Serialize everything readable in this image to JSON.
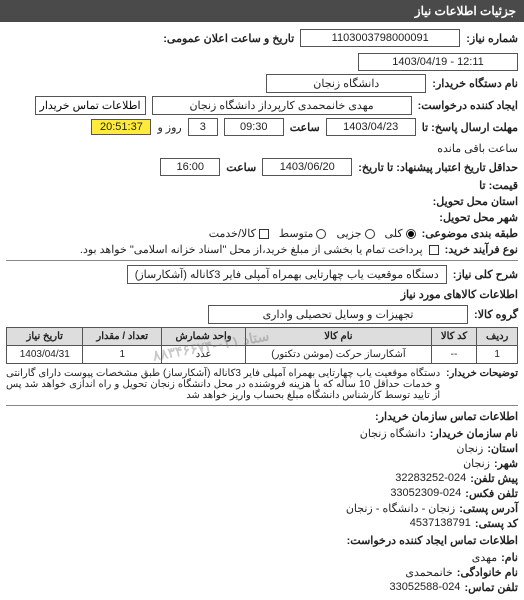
{
  "header": "جزئیات اطلاعات نیاز",
  "fields": {
    "request_number_label": "شماره نیاز:",
    "request_number": "1103003798000091",
    "announce_datetime_label": "تاریخ و ساعت اعلان عمومی:",
    "announce_datetime": "12:11 - 1403/04/19",
    "dept_name_label": "نام دستگاه خریدار:",
    "dept_name": "دانشگاه زنجان",
    "creator_label": "ایجاد کننده درخواست:",
    "creator": "مهدی خانمحمدی کارپرداز دانشگاه زنجان",
    "contact_btn": "اطلاعات تماس خریدار",
    "deadline_label": "مهلت ارسال پاسخ: تا",
    "deadline_date": "1403/04/23",
    "time_label": "ساعت",
    "deadline_time": "09:30",
    "remaining_days": "3",
    "remaining_days_label": "روز و",
    "remaining_time": "20:51:37",
    "remaining_label": "ساعت باقی مانده",
    "validity_label": "حداقل تاریخ اعتبار پیشنهاد: تا تاریخ:",
    "validity_date": "1403/06/20",
    "validity_time": "16:00",
    "price_null_label": "قیمت: تا",
    "delivery_province_label": "استان محل تحویل:",
    "delivery_city_label": "شهر محل تحویل:",
    "budget_label": "طبقه بندی موضوعی:",
    "radio_all": "کلی",
    "radio_partial": "جزیی",
    "radio_mid": "متوسط",
    "radio_item": "کالا/خدمت",
    "process_label": "نوع فرآیند خرید:",
    "process_text": "پرداخت تمام یا بخشی از مبلغ خرید،از محل \"اسناد خزانه اسلامی\" خواهد بود.",
    "desc_key_label": "شرح کلی نیاز:",
    "desc_key": "دستگاه موقعیت یاب چهارتایی بهمراه آمپلی فایر 3کاناله (آشکارساز)",
    "goods_header": "اطلاعات کالاهای مورد نیاز",
    "group_label": "گروه کالا:",
    "group": "تجهیزات و وسایل تحصیلی واداری"
  },
  "table": {
    "columns": [
      "ردیف",
      "کد کالا",
      "نام کالا",
      "واحد شمارش",
      "تعداد / مقدار",
      "تاریخ نیاز"
    ],
    "rows": [
      [
        "1",
        "--",
        "آشکارساز حرکت (موشن دتکتور)",
        "عدد",
        "1",
        "1403/04/31"
      ]
    ]
  },
  "description": {
    "label": "توضیحات خریدار:",
    "text": "دستگاه موقعیت یاب چهارتایی بهمراه آمپلی فایر 3کاناله (آشکارساز) طبق مشخصات پیوست دارای گارانتی و خدمات حداقل 10 ساله که با هزینه فروشنده در محل دانشگاه زنجان تحویل و راه اندازی خواهد شد پس از تایید توسط کارشناس دانشگاه مبلغ بحساب واریز خواهد شد"
  },
  "contact": {
    "header": "اطلاعات تماس سازمان خریدار:",
    "org_label": "نام سازمان خریدار:",
    "org": "دانشگاه زنجان",
    "province_label": "استان:",
    "province": "زنجان",
    "city_label": "شهر:",
    "city": "زنجان",
    "phone_label": "پیش تلفن:",
    "phone": "32283252-024",
    "fax_label": "تلفن فکس:",
    "fax": "33052309-024",
    "address_label": "آدرس پستی:",
    "address": "زنجان - دانشگاه - زنجان",
    "postcode_label": "کد پستی:",
    "postcode": "4537138791",
    "creator_header": "اطلاعات تماس ایجاد کننده درخواست:",
    "name_label": "نام:",
    "name": "مهدی",
    "lname_label": "نام خانوادگی:",
    "lname": "خانمحمدی",
    "tel_label": "تلفن تماس:",
    "tel": "33052588-024"
  },
  "stamp": "ستاد ۰۲۱-۸۸۳۴۶۶۷۴"
}
